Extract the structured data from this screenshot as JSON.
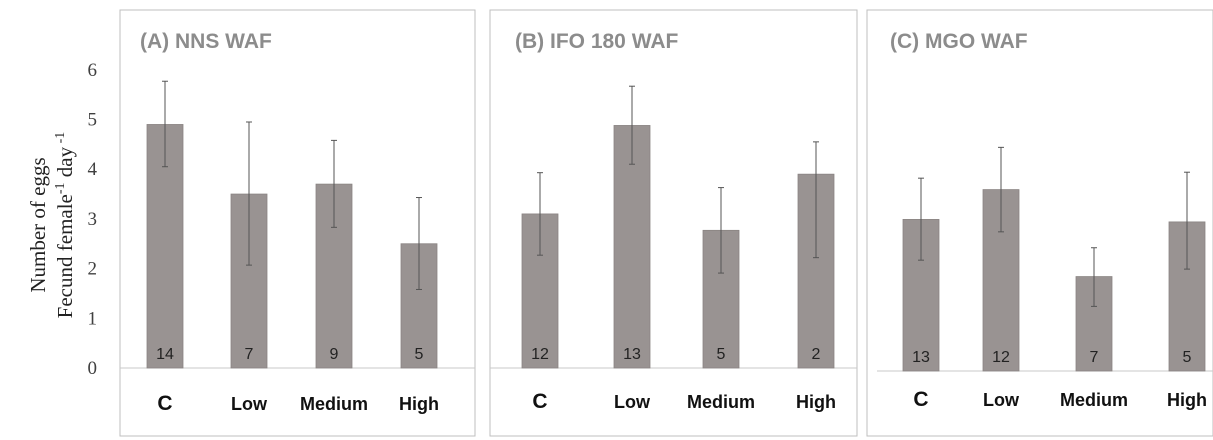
{
  "colors": {
    "bar": "#999392",
    "bar_edge": "#8a8483",
    "error_bar": "#555555",
    "frame": "#bfbfbf",
    "baseline": "#c8c8c8",
    "title": "#8c8c8c"
  },
  "y_axis": {
    "title_line1": "Number of eggs",
    "title_line2_prefix": "Fecund female",
    "title_line2_sup1": "-1",
    "title_line2_mid": " day",
    "title_line2_sup2": " -1",
    "tick_labels": [
      "0",
      "1",
      "2",
      "3",
      "4",
      "5",
      "6"
    ]
  },
  "chart_data": [
    {
      "type": "bar",
      "title": "(A) NNS WAF",
      "categories": [
        "C",
        "Low",
        "Medium",
        "High"
      ],
      "values": [
        4.9,
        3.5,
        3.7,
        2.5
      ],
      "error_low": [
        4.05,
        2.07,
        2.83,
        1.58
      ],
      "error_high": [
        5.77,
        4.95,
        4.58,
        3.43
      ],
      "n_labels": [
        "14",
        "7",
        "9",
        "5"
      ],
      "ylim": [
        0,
        6
      ],
      "ylabel": "Number of eggs Fecund female-1 day -1",
      "grid": false
    },
    {
      "type": "bar",
      "title": "(B) IFO 180 WAF",
      "categories": [
        "C",
        "Low",
        "Medium",
        "High"
      ],
      "values": [
        3.1,
        4.88,
        2.77,
        3.9
      ],
      "error_low": [
        2.27,
        4.1,
        1.91,
        2.22
      ],
      "error_high": [
        3.93,
        5.67,
        3.63,
        4.55
      ],
      "n_labels": [
        "12",
        "13",
        "5",
        "2"
      ],
      "ylim": [
        0,
        6
      ],
      "grid": false
    },
    {
      "type": "bar",
      "title": "(C) MGO WAF",
      "categories": [
        "C",
        "Low",
        "Medium",
        "High"
      ],
      "values": [
        3.05,
        3.65,
        1.9,
        3.0
      ],
      "error_low": [
        2.23,
        2.8,
        1.3,
        2.05
      ],
      "error_high": [
        3.88,
        4.5,
        2.48,
        4.0
      ],
      "n_labels": [
        "13",
        "12",
        "7",
        "5"
      ],
      "ylim": [
        0,
        6
      ],
      "grid": false
    }
  ]
}
